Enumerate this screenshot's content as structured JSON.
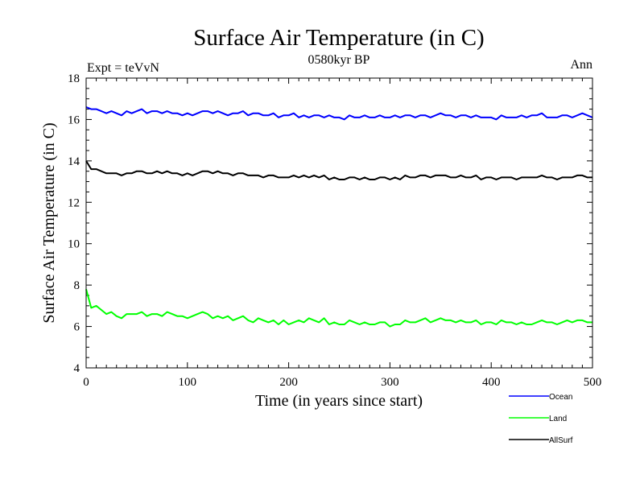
{
  "chart_data": {
    "type": "line",
    "title": "Surface Air Temperature (in C)",
    "subtitle": "0580kyr BP",
    "left_annotation": "Expt = teVvN",
    "right_annotation": "Ann",
    "xlabel": "Time (in years since start)",
    "ylabel": "Surface Air Temperature (in C)",
    "xlim": [
      0,
      500
    ],
    "ylim": [
      4,
      18
    ],
    "xticks": [
      0,
      100,
      200,
      300,
      400,
      500
    ],
    "xtick_labels": [
      "0",
      "100",
      "200",
      "300",
      "400",
      "500"
    ],
    "yticks": [
      4,
      6,
      8,
      10,
      12,
      14,
      16,
      18
    ],
    "ytick_labels": [
      "4",
      "6",
      "8",
      "10",
      "12",
      "14",
      "16",
      "18"
    ],
    "grid": false,
    "legend_position": "bottom-right, below plot",
    "x": [
      0,
      5,
      10,
      15,
      20,
      25,
      30,
      35,
      40,
      45,
      50,
      55,
      60,
      65,
      70,
      75,
      80,
      85,
      90,
      95,
      100,
      105,
      110,
      115,
      120,
      125,
      130,
      135,
      140,
      145,
      150,
      155,
      160,
      165,
      170,
      175,
      180,
      185,
      190,
      195,
      200,
      205,
      210,
      215,
      220,
      225,
      230,
      235,
      240,
      245,
      250,
      255,
      260,
      265,
      270,
      275,
      280,
      285,
      290,
      295,
      300,
      305,
      310,
      315,
      320,
      325,
      330,
      335,
      340,
      345,
      350,
      355,
      360,
      365,
      370,
      375,
      380,
      385,
      390,
      395,
      400,
      405,
      410,
      415,
      420,
      425,
      430,
      435,
      440,
      445,
      450,
      455,
      460,
      465,
      470,
      475,
      480,
      485,
      490,
      495,
      500
    ],
    "series": [
      {
        "name": "Ocean",
        "color": "#0000ff",
        "values": [
          16.6,
          16.5,
          16.5,
          16.4,
          16.3,
          16.4,
          16.3,
          16.2,
          16.4,
          16.3,
          16.4,
          16.5,
          16.3,
          16.4,
          16.4,
          16.3,
          16.4,
          16.3,
          16.3,
          16.2,
          16.3,
          16.2,
          16.3,
          16.4,
          16.4,
          16.3,
          16.4,
          16.3,
          16.2,
          16.3,
          16.3,
          16.4,
          16.2,
          16.3,
          16.3,
          16.2,
          16.2,
          16.3,
          16.1,
          16.2,
          16.2,
          16.3,
          16.1,
          16.2,
          16.1,
          16.2,
          16.2,
          16.1,
          16.2,
          16.1,
          16.1,
          16.0,
          16.2,
          16.1,
          16.1,
          16.2,
          16.1,
          16.1,
          16.2,
          16.1,
          16.1,
          16.2,
          16.1,
          16.2,
          16.2,
          16.1,
          16.2,
          16.2,
          16.1,
          16.2,
          16.3,
          16.2,
          16.2,
          16.1,
          16.2,
          16.2,
          16.1,
          16.2,
          16.1,
          16.1,
          16.1,
          16.0,
          16.2,
          16.1,
          16.1,
          16.1,
          16.2,
          16.1,
          16.2,
          16.2,
          16.3,
          16.1,
          16.1,
          16.1,
          16.2,
          16.2,
          16.1,
          16.2,
          16.3,
          16.2,
          16.1
        ]
      },
      {
        "name": "Land",
        "color": "#00ff00",
        "values": [
          7.8,
          6.9,
          7.0,
          6.8,
          6.6,
          6.7,
          6.5,
          6.4,
          6.6,
          6.6,
          6.6,
          6.7,
          6.5,
          6.6,
          6.6,
          6.5,
          6.7,
          6.6,
          6.5,
          6.5,
          6.4,
          6.5,
          6.6,
          6.7,
          6.6,
          6.4,
          6.5,
          6.4,
          6.5,
          6.3,
          6.4,
          6.5,
          6.3,
          6.2,
          6.4,
          6.3,
          6.2,
          6.3,
          6.1,
          6.3,
          6.1,
          6.2,
          6.3,
          6.2,
          6.4,
          6.3,
          6.2,
          6.4,
          6.1,
          6.2,
          6.1,
          6.1,
          6.3,
          6.2,
          6.1,
          6.2,
          6.1,
          6.1,
          6.2,
          6.2,
          6.0,
          6.1,
          6.1,
          6.3,
          6.2,
          6.2,
          6.3,
          6.4,
          6.2,
          6.3,
          6.4,
          6.3,
          6.3,
          6.2,
          6.3,
          6.2,
          6.2,
          6.3,
          6.1,
          6.2,
          6.2,
          6.1,
          6.3,
          6.2,
          6.2,
          6.1,
          6.2,
          6.1,
          6.1,
          6.2,
          6.3,
          6.2,
          6.2,
          6.1,
          6.2,
          6.3,
          6.2,
          6.3,
          6.3,
          6.2,
          6.2
        ]
      },
      {
        "name": "AllSurf",
        "color": "#000000",
        "values": [
          14.0,
          13.6,
          13.6,
          13.5,
          13.4,
          13.4,
          13.4,
          13.3,
          13.4,
          13.4,
          13.5,
          13.5,
          13.4,
          13.4,
          13.5,
          13.4,
          13.5,
          13.4,
          13.4,
          13.3,
          13.4,
          13.3,
          13.4,
          13.5,
          13.5,
          13.4,
          13.5,
          13.4,
          13.4,
          13.3,
          13.4,
          13.4,
          13.3,
          13.3,
          13.3,
          13.2,
          13.3,
          13.3,
          13.2,
          13.2,
          13.2,
          13.3,
          13.2,
          13.3,
          13.2,
          13.3,
          13.2,
          13.3,
          13.1,
          13.2,
          13.1,
          13.1,
          13.2,
          13.2,
          13.1,
          13.2,
          13.1,
          13.1,
          13.2,
          13.2,
          13.1,
          13.2,
          13.1,
          13.3,
          13.2,
          13.2,
          13.3,
          13.3,
          13.2,
          13.3,
          13.3,
          13.3,
          13.2,
          13.2,
          13.3,
          13.2,
          13.2,
          13.3,
          13.1,
          13.2,
          13.2,
          13.1,
          13.2,
          13.2,
          13.2,
          13.1,
          13.2,
          13.2,
          13.2,
          13.2,
          13.3,
          13.2,
          13.2,
          13.1,
          13.2,
          13.2,
          13.2,
          13.3,
          13.3,
          13.2,
          13.2
        ]
      }
    ]
  }
}
